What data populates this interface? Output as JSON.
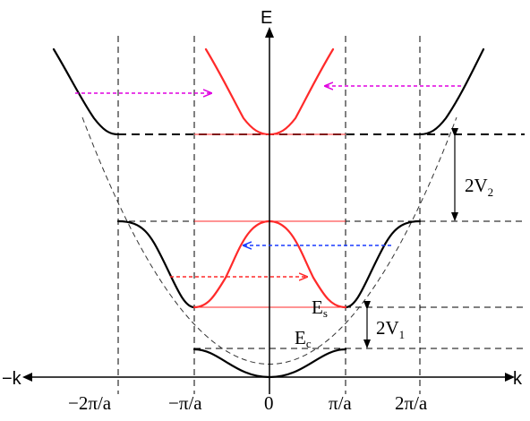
{
  "axes": {
    "e_label": "E",
    "k_pos_label": "k",
    "k_neg_label": "−k"
  },
  "ticks": [
    "−2π/a",
    "−π/a",
    "0",
    "π/a",
    "2π/a"
  ],
  "labels": {
    "es_main": "E",
    "es_sub": "s",
    "ec_main": "E",
    "ec_sub": "c",
    "gap1_main": "2V",
    "gap1_sub": "1",
    "gap2_main": "2V",
    "gap2_sub": "2"
  },
  "colors": {
    "extended_zone": "#000000",
    "reduced_zone": "#ff2a2a",
    "arrow_red": "#ff2a2a",
    "arrow_magenta": "#e000e0",
    "arrow_blue": "#1a3cff"
  }
}
